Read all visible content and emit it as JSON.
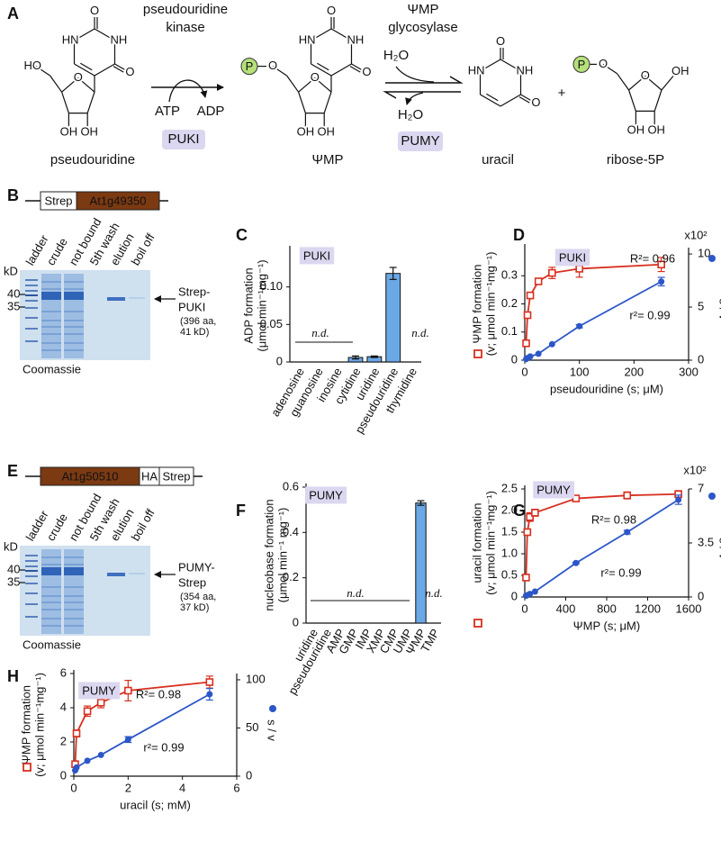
{
  "panel_labels": [
    "A",
    "B",
    "C",
    "D",
    "E",
    "F",
    "G",
    "H"
  ],
  "scheme": {
    "enzymes": [
      [
        "pseudouridine",
        "kinase"
      ],
      [
        "ΨMP",
        "glycosylase"
      ]
    ],
    "cofactors": [
      "ATP",
      "ADP",
      "H₂O",
      "H₂O"
    ],
    "proteins": [
      "PUKI",
      "PUMY"
    ],
    "compounds": [
      "pseudouridine",
      "ΨMP",
      "uracil",
      "ribose-5P"
    ],
    "plus": "+",
    "phosphate": "P",
    "molecules": [
      [
        "O",
        "HN",
        "NH",
        "O",
        "HO",
        "O",
        "OH",
        "OH"
      ],
      [
        "O",
        "HN",
        "NH",
        "O",
        "O",
        "O",
        "OH",
        "OH"
      ],
      [
        "O",
        "HN",
        "NH",
        "O"
      ],
      [
        "O",
        "O",
        "OH",
        "OH",
        "OH"
      ]
    ]
  },
  "gels": [
    {
      "construct": [
        "Strep",
        "At1g49350"
      ],
      "lanes": [
        "ladder",
        "crude",
        "not bound",
        "5th wash",
        "elution",
        "boil off"
      ],
      "kd_label": "kD",
      "markers": [
        "40",
        "35"
      ],
      "protein": [
        "Strep-",
        "PUKI"
      ],
      "size": [
        "(396 aa,",
        "41 kD)"
      ],
      "stain": "Coomassie"
    },
    {
      "construct": [
        "At1g50510",
        "HA",
        "Strep"
      ],
      "lanes": [
        "ladder",
        "crude",
        "not bound",
        "5th wash",
        "elution",
        "boil off"
      ],
      "kd_label": "kD",
      "markers": [
        "40",
        "35"
      ],
      "protein": [
        "PUMY-",
        "Strep"
      ],
      "size": [
        "(354 aa,",
        "37 kD)"
      ],
      "stain": "Coomassie"
    }
  ],
  "chart_data": [
    {
      "type": "bar",
      "ylabel": [
        "ADP formation",
        "(μmol min⁻¹mg⁻¹)"
      ],
      "categories": [
        "adenosine",
        "guanosine",
        "inosine",
        "cytidine",
        "uridine",
        "pseudouridine",
        "thymidine"
      ],
      "values": [
        null,
        null,
        null,
        0.006,
        0.007,
        0.118,
        null
      ],
      "errors": [
        null,
        null,
        null,
        0.002,
        0.001,
        0.008,
        null
      ],
      "color": "#6aa8e6",
      "ylim": [
        0,
        0.15
      ],
      "yticks": [
        0,
        0.05,
        {
          "value": 0.1,
          "label": "0.10"
        }
      ],
      "annotations": [
        "PUKI",
        "n.d.",
        "n.d."
      ]
    },
    {
      "type": "line",
      "ylabel": [
        "ΨMP formation",
        "(v; μmol min⁻¹mg⁻¹)"
      ],
      "y2label": "s / v",
      "xlabel": "pseudouridine (s; μM)",
      "x": [
        2.5,
        5,
        10,
        25,
        50,
        100,
        250
      ],
      "series": [
        {
          "color": "#d7301f",
          "values": [
            0.06,
            0.16,
            0.23,
            0.28,
            0.31,
            0.325,
            0.34
          ],
          "errors": [
            0.005,
            0.01,
            0.01,
            0.01,
            0.02,
            0.03,
            0.025
          ]
        },
        {
          "color": "#2c56c8",
          "axis": "y2",
          "values": [
            0.1,
            0.2,
            0.35,
            0.6,
            1.5,
            3.2,
            7.4
          ],
          "errors": [
            null,
            null,
            null,
            null,
            null,
            0.15,
            0.4
          ]
        }
      ],
      "xlim": [
        0,
        300
      ],
      "xticks": [
        0,
        100,
        200,
        300
      ],
      "ylim": [
        0,
        0.4
      ],
      "yticks": [
        0,
        0.1,
        0.2,
        0.3
      ],
      "y2lim": [
        0,
        10.6
      ],
      "y2ticks": [
        0,
        5,
        10
      ],
      "annotations": [
        "PUKI",
        "R²= 0.96",
        "r²= 0.99",
        "x10²"
      ]
    },
    {
      "type": "bar",
      "ylabel": [
        "nucleobase formation",
        "(μmol min⁻¹ mg⁻¹)"
      ],
      "categories": [
        "uridine",
        "pseudouridine",
        "AMP",
        "GMP",
        "IMP",
        "XMP",
        "CMP",
        "UMP",
        "ΨMP",
        "TMP"
      ],
      "values": [
        null,
        null,
        null,
        null,
        null,
        null,
        null,
        null,
        0.53,
        null
      ],
      "errors": [
        null,
        null,
        null,
        null,
        null,
        null,
        null,
        null,
        0.01,
        null
      ],
      "color": "#6aa8e6",
      "ylim": [
        0,
        0.6
      ],
      "yticks": [
        0,
        0.2,
        0.4,
        0.6
      ],
      "annotations": [
        "PUMY",
        "n.d.",
        "n.d."
      ]
    },
    {
      "type": "line",
      "ylabel": [
        "uracil formation",
        "(v; μmol min⁻¹mg⁻¹)"
      ],
      "y2label": "s / v",
      "xlabel": "ΨMP (s; μM)",
      "x": [
        12.5,
        25,
        50,
        100,
        500,
        1000,
        1500
      ],
      "series": [
        {
          "color": "#d7301f",
          "values": [
            0.45,
            1.5,
            1.85,
            1.95,
            2.28,
            2.35,
            2.38
          ],
          "errors": [
            0.05,
            0.05,
            0.1,
            0.08,
            0.03,
            0.08,
            0.08
          ]
        },
        {
          "color": "#2c56c8",
          "axis": "y2",
          "values": [
            0.08,
            0.12,
            0.2,
            0.35,
            2.2,
            4.2,
            6.3
          ],
          "errors": [
            null,
            null,
            null,
            null,
            0.05,
            0.12,
            0.3
          ]
        }
      ],
      "xlim": [
        0,
        1600
      ],
      "xticks": [
        0,
        400,
        800,
        1200,
        1600
      ],
      "ylim": [
        0,
        2.5
      ],
      "yticks": [
        0,
        0.5,
        {
          "value": 1,
          "label": "1.0"
        },
        1.5,
        {
          "value": 2,
          "label": "2.0"
        },
        2.5
      ],
      "y2lim": [
        0,
        7
      ],
      "y2ticks": [
        0,
        3.5,
        7
      ],
      "annotations": [
        "PUMY",
        "R²= 0.98",
        "r²= 0.99",
        "x10²"
      ]
    },
    {
      "type": "line",
      "ylabel": [
        "ΨMP formation",
        "(v; μmol min⁻¹mg⁻¹)"
      ],
      "y2label": "s / v",
      "xlabel": "uracil (s; mM)",
      "x": [
        0.05,
        0.1,
        0.5,
        1,
        2,
        5
      ],
      "series": [
        {
          "color": "#d7301f",
          "values": [
            0.7,
            2.5,
            3.8,
            4.3,
            5.0,
            5.5
          ],
          "errors": [
            0.1,
            0.2,
            0.3,
            0.3,
            0.6,
            0.35
          ]
        },
        {
          "color": "#2c56c8",
          "axis": "y2",
          "values": [
            6,
            9,
            16,
            22,
            38,
            85
          ],
          "errors": [
            null,
            null,
            null,
            null,
            3,
            6
          ]
        }
      ],
      "xlim": [
        0,
        6
      ],
      "xticks": [
        0,
        2,
        4,
        6
      ],
      "ylim": [
        0,
        6
      ],
      "yticks": [
        0,
        2,
        4,
        6
      ],
      "y2lim": [
        0,
        106.5
      ],
      "y2ticks": [
        0,
        50,
        100
      ],
      "annotations": [
        "PUMY",
        "R²= 0.98",
        "r²= 0.99"
      ]
    }
  ]
}
